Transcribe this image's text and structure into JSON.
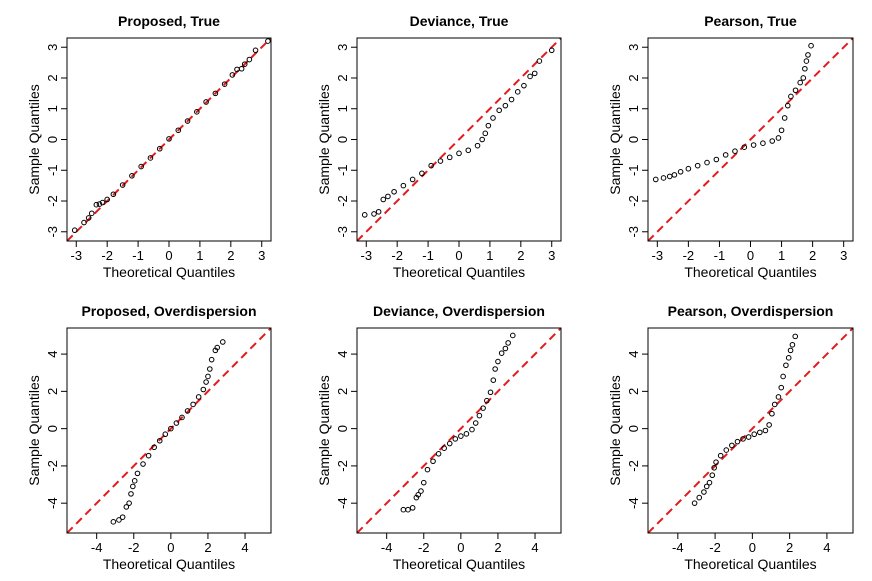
{
  "colors": {
    "points": "#000000",
    "reference_line": "#e41a1c",
    "axes": "#000000",
    "background": "#ffffff"
  },
  "chart_data": [
    {
      "type": "scatter",
      "title": "Proposed, True",
      "xlabel": "Theoretical Quantiles",
      "ylabel": "Sample Quantiles",
      "xlim": [
        -3.3,
        3.3
      ],
      "ylim": [
        -3.3,
        3.3
      ],
      "xticks": [
        -3,
        -2,
        -1,
        0,
        1,
        2,
        3
      ],
      "yticks": [
        -3,
        -2,
        -1,
        0,
        1,
        2,
        3
      ],
      "reference_line": {
        "intercept": 0,
        "slope": 1,
        "style": "dashed"
      },
      "points": [
        [
          -3.05,
          -2.95
        ],
        [
          -2.75,
          -2.7
        ],
        [
          -2.6,
          -2.55
        ],
        [
          -2.5,
          -2.4
        ],
        [
          -2.35,
          -2.12
        ],
        [
          -2.25,
          -2.1
        ],
        [
          -2.15,
          -2.05
        ],
        [
          -2.0,
          -1.95
        ],
        [
          -1.8,
          -1.78
        ],
        [
          -1.5,
          -1.48
        ],
        [
          -1.2,
          -1.18
        ],
        [
          -0.9,
          -0.88
        ],
        [
          -0.6,
          -0.6
        ],
        [
          -0.3,
          -0.3
        ],
        [
          0,
          0.02
        ],
        [
          0.3,
          0.3
        ],
        [
          0.6,
          0.6
        ],
        [
          0.9,
          0.9
        ],
        [
          1.2,
          1.22
        ],
        [
          1.5,
          1.5
        ],
        [
          1.8,
          1.8
        ],
        [
          2.05,
          2.1
        ],
        [
          2.2,
          2.28
        ],
        [
          2.35,
          2.3
        ],
        [
          2.45,
          2.45
        ],
        [
          2.6,
          2.6
        ],
        [
          2.8,
          2.9
        ],
        [
          3.2,
          3.2
        ]
      ]
    },
    {
      "type": "scatter",
      "title": "Deviance, True",
      "xlabel": "Theoretical Quantiles",
      "ylabel": "Sample Quantiles",
      "xlim": [
        -3.3,
        3.3
      ],
      "ylim": [
        -3.3,
        3.3
      ],
      "xticks": [
        -3,
        -2,
        -1,
        0,
        1,
        2,
        3
      ],
      "yticks": [
        -3,
        -2,
        -1,
        0,
        1,
        2,
        3
      ],
      "reference_line": {
        "intercept": 0,
        "slope": 1,
        "style": "dashed"
      },
      "points": [
        [
          -3.05,
          -2.45
        ],
        [
          -2.75,
          -2.42
        ],
        [
          -2.6,
          -2.35
        ],
        [
          -2.45,
          -1.95
        ],
        [
          -2.3,
          -1.85
        ],
        [
          -2.1,
          -1.7
        ],
        [
          -1.8,
          -1.5
        ],
        [
          -1.5,
          -1.3
        ],
        [
          -1.2,
          -1.1
        ],
        [
          -0.9,
          -0.85
        ],
        [
          -0.6,
          -0.7
        ],
        [
          -0.3,
          -0.58
        ],
        [
          0,
          -0.45
        ],
        [
          0.3,
          -0.35
        ],
        [
          0.6,
          -0.2
        ],
        [
          0.75,
          0
        ],
        [
          0.85,
          0.2
        ],
        [
          0.95,
          0.45
        ],
        [
          1.1,
          0.7
        ],
        [
          1.3,
          0.95
        ],
        [
          1.5,
          1.1
        ],
        [
          1.7,
          1.3
        ],
        [
          1.9,
          1.55
        ],
        [
          2.1,
          1.75
        ],
        [
          2.3,
          2.05
        ],
        [
          2.45,
          2.15
        ],
        [
          2.6,
          2.55
        ],
        [
          3.0,
          2.9
        ]
      ]
    },
    {
      "type": "scatter",
      "title": "Pearson, True",
      "xlabel": "Theoretical Quantiles",
      "ylabel": "Sample Quantiles",
      "xlim": [
        -3.3,
        3.3
      ],
      "ylim": [
        -3.3,
        3.3
      ],
      "xticks": [
        -3,
        -2,
        -1,
        0,
        1,
        2,
        3
      ],
      "yticks": [
        -3,
        -2,
        -1,
        0,
        1,
        2,
        3
      ],
      "reference_line": {
        "intercept": 0,
        "slope": 1,
        "style": "dashed"
      },
      "points": [
        [
          -3.05,
          -1.3
        ],
        [
          -2.8,
          -1.25
        ],
        [
          -2.6,
          -1.2
        ],
        [
          -2.45,
          -1.15
        ],
        [
          -2.25,
          -1.05
        ],
        [
          -2.0,
          -0.95
        ],
        [
          -1.7,
          -0.85
        ],
        [
          -1.4,
          -0.75
        ],
        [
          -1.1,
          -0.65
        ],
        [
          -0.8,
          -0.5
        ],
        [
          -0.5,
          -0.38
        ],
        [
          -0.2,
          -0.25
        ],
        [
          0.1,
          -0.18
        ],
        [
          0.4,
          -0.12
        ],
        [
          0.7,
          -0.05
        ],
        [
          0.9,
          0.05
        ],
        [
          1.0,
          0.3
        ],
        [
          1.1,
          0.7
        ],
        [
          1.2,
          1.1
        ],
        [
          1.3,
          1.4
        ],
        [
          1.45,
          1.6
        ],
        [
          1.6,
          1.85
        ],
        [
          1.7,
          2.0
        ],
        [
          1.75,
          2.3
        ],
        [
          1.8,
          2.55
        ],
        [
          1.85,
          2.75
        ],
        [
          1.95,
          3.05
        ]
      ]
    },
    {
      "type": "scatter",
      "title": "Proposed, Overdispersion",
      "xlabel": "Theoretical Quantiles",
      "ylabel": "Sample Quantiles",
      "xlim": [
        -5.6,
        5.4
      ],
      "ylim": [
        -5.6,
        5.4
      ],
      "xticks": [
        -4,
        -2,
        0,
        2,
        4
      ],
      "yticks": [
        -4,
        -2,
        0,
        2,
        4
      ],
      "reference_line": {
        "intercept": 0,
        "slope": 1,
        "style": "dashed"
      },
      "points": [
        [
          -3.1,
          -5.0
        ],
        [
          -2.8,
          -4.9
        ],
        [
          -2.6,
          -4.75
        ],
        [
          -2.4,
          -4.2
        ],
        [
          -2.25,
          -4.0
        ],
        [
          -2.15,
          -3.5
        ],
        [
          -2.05,
          -3.1
        ],
        [
          -1.95,
          -2.8
        ],
        [
          -1.8,
          -2.4
        ],
        [
          -1.5,
          -1.9
        ],
        [
          -1.2,
          -1.45
        ],
        [
          -0.9,
          -1.0
        ],
        [
          -0.6,
          -0.65
        ],
        [
          -0.3,
          -0.3
        ],
        [
          0,
          0
        ],
        [
          0.3,
          0.3
        ],
        [
          0.6,
          0.6
        ],
        [
          0.9,
          0.95
        ],
        [
          1.2,
          1.3
        ],
        [
          1.5,
          1.7
        ],
        [
          1.75,
          2.1
        ],
        [
          1.9,
          2.5
        ],
        [
          2.0,
          2.8
        ],
        [
          2.1,
          3.2
        ],
        [
          2.2,
          3.7
        ],
        [
          2.4,
          4.2
        ],
        [
          2.5,
          4.35
        ],
        [
          2.8,
          4.65
        ]
      ]
    },
    {
      "type": "scatter",
      "title": "Deviance, Overdispersion",
      "xlabel": "Theoretical Quantiles",
      "ylabel": "Sample Quantiles",
      "xlim": [
        -5.6,
        5.4
      ],
      "ylim": [
        -5.6,
        5.4
      ],
      "xticks": [
        -4,
        -2,
        0,
        2,
        4
      ],
      "yticks": [
        -4,
        -2,
        0,
        2,
        4
      ],
      "reference_line": {
        "intercept": 0,
        "slope": 1,
        "style": "dashed"
      },
      "points": [
        [
          -3.1,
          -4.35
        ],
        [
          -2.85,
          -4.35
        ],
        [
          -2.6,
          -4.25
        ],
        [
          -2.4,
          -3.7
        ],
        [
          -2.3,
          -3.55
        ],
        [
          -2.15,
          -3.35
        ],
        [
          -2.0,
          -2.9
        ],
        [
          -1.8,
          -2.2
        ],
        [
          -1.5,
          -1.75
        ],
        [
          -1.2,
          -1.35
        ],
        [
          -0.9,
          -1.05
        ],
        [
          -0.6,
          -0.8
        ],
        [
          -0.3,
          -0.55
        ],
        [
          0,
          -0.4
        ],
        [
          0.3,
          -0.28
        ],
        [
          0.6,
          -0.05
        ],
        [
          0.8,
          0.3
        ],
        [
          1.0,
          0.7
        ],
        [
          1.2,
          1.1
        ],
        [
          1.4,
          1.5
        ],
        [
          1.6,
          1.95
        ],
        [
          1.75,
          2.6
        ],
        [
          1.85,
          3.2
        ],
        [
          2.0,
          3.6
        ],
        [
          2.2,
          4.05
        ],
        [
          2.4,
          4.3
        ],
        [
          2.55,
          4.6
        ],
        [
          2.8,
          5.0
        ]
      ]
    },
    {
      "type": "scatter",
      "title": "Pearson, Overdispersion",
      "xlabel": "Theoretical Quantiles",
      "ylabel": "Sample Quantiles",
      "xlim": [
        -5.6,
        5.4
      ],
      "ylim": [
        -5.6,
        5.4
      ],
      "xticks": [
        -4,
        -2,
        0,
        2,
        4
      ],
      "yticks": [
        -4,
        -2,
        0,
        2,
        4
      ],
      "reference_line": {
        "intercept": 0,
        "slope": 1,
        "style": "dashed"
      },
      "points": [
        [
          -3.1,
          -4.0
        ],
        [
          -2.85,
          -3.7
        ],
        [
          -2.6,
          -3.4
        ],
        [
          -2.45,
          -3.1
        ],
        [
          -2.3,
          -2.9
        ],
        [
          -2.15,
          -2.5
        ],
        [
          -2.05,
          -2.1
        ],
        [
          -1.95,
          -1.8
        ],
        [
          -1.7,
          -1.45
        ],
        [
          -1.4,
          -1.15
        ],
        [
          -1.1,
          -0.9
        ],
        [
          -0.8,
          -0.7
        ],
        [
          -0.5,
          -0.55
        ],
        [
          -0.2,
          -0.45
        ],
        [
          0.1,
          -0.3
        ],
        [
          0.4,
          -0.2
        ],
        [
          0.7,
          -0.1
        ],
        [
          0.9,
          0.2
        ],
        [
          1.05,
          0.8
        ],
        [
          1.2,
          1.3
        ],
        [
          1.4,
          1.7
        ],
        [
          1.55,
          2.2
        ],
        [
          1.65,
          2.8
        ],
        [
          1.8,
          3.4
        ],
        [
          1.95,
          3.8
        ],
        [
          2.05,
          4.2
        ],
        [
          2.15,
          4.5
        ],
        [
          2.3,
          4.95
        ]
      ]
    }
  ]
}
